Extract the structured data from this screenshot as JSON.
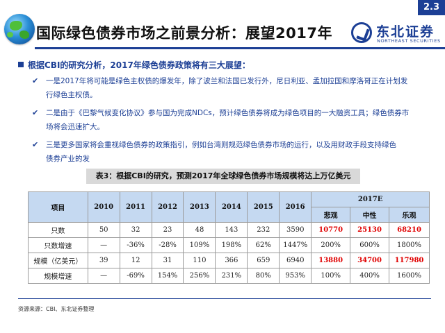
{
  "badge": "2.3",
  "title": "国际绿色债券市场之前景分析：展望2017年",
  "logo": {
    "cn": "东北证券",
    "en": "NORTHEAST SECURITIES"
  },
  "intro": "根据CBI的研究分析，2017年绿色债券政策将有三大展望：",
  "bullets": [
    {
      "line1": "一是2017年将可能是绿色主权债的爆发年，除了波兰和法国已发行外，尼日利亚、孟加拉国和摩洛哥正在计划发",
      "line2": "行绿色主权债。"
    },
    {
      "line1": "二是由于《巴黎气候变化协议》参与国为完成NDCs，预计绿色债券将成为绿色项目的一大融资工具；绿色债券市",
      "line2": "场将会迅速扩大。"
    },
    {
      "line1": "三是更多国家将会重视绿色债券的政策指引，例如台湾则规范绿色债券市场的运行，以及用财政手段支持绿色",
      "line2": "债券产业的发"
    }
  ],
  "table": {
    "caption": "表3：根据CBI的研究，预测2017年全球绿色债券市场规模将达上万亿美元",
    "header": {
      "item": "项目",
      "years": [
        "2010",
        "2011",
        "2012",
        "2013",
        "2014",
        "2015",
        "2016"
      ],
      "forecast": "2017E",
      "scenarios": [
        "悲观",
        "中性",
        "乐观"
      ]
    },
    "rows": [
      {
        "label": "只数",
        "values": [
          "50",
          "32",
          "23",
          "48",
          "143",
          "232",
          "3590"
        ],
        "forecast": [
          "10770",
          "25130",
          "68210"
        ]
      },
      {
        "label": "只数增速",
        "values": [
          "—",
          "-36%",
          "-28%",
          "109%",
          "198%",
          "62%",
          "1447%"
        ],
        "forecast": [
          "200%",
          "600%",
          "1800%"
        ]
      },
      {
        "label": "规模（亿美元）",
        "values": [
          "39",
          "12",
          "31",
          "110",
          "366",
          "659",
          "6940"
        ],
        "forecast": [
          "13880",
          "34700",
          "117980"
        ]
      },
      {
        "label": "规模增速",
        "values": [
          "—",
          "-69%",
          "154%",
          "256%",
          "231%",
          "80%",
          "953%"
        ],
        "forecast": [
          "100%",
          "400%",
          "1600%"
        ]
      }
    ]
  },
  "source": "资源来源：CBI、东北证券整理",
  "colors": {
    "brand": "#1c3f95",
    "header_fill": "#c5d9f1",
    "highlight": "#e00000"
  }
}
